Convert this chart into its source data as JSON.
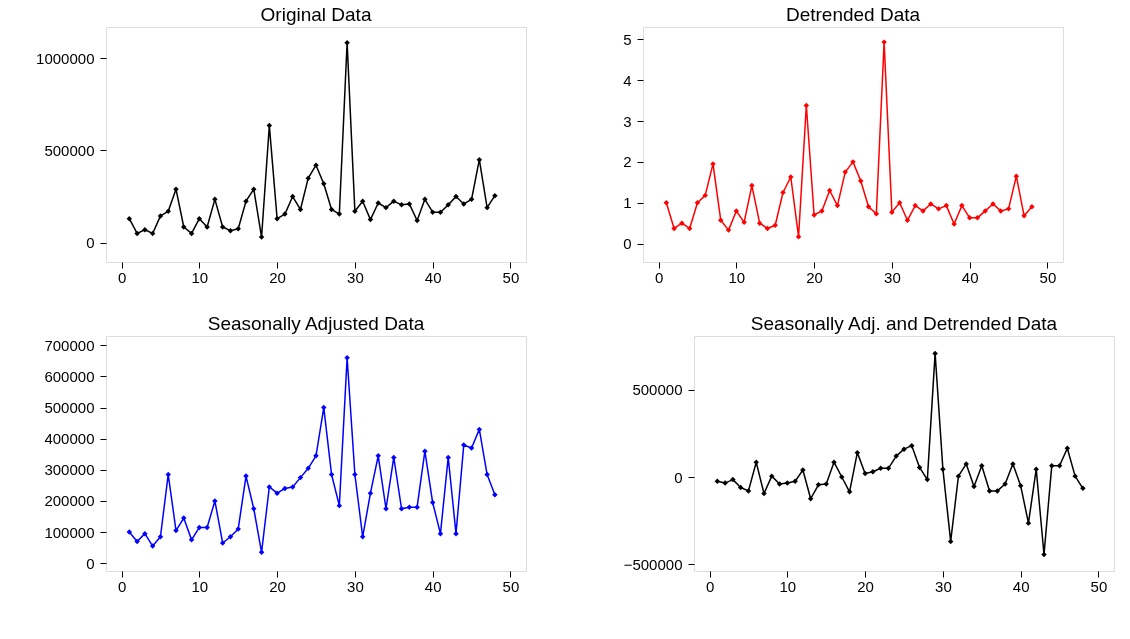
{
  "chart_data": [
    {
      "type": "line",
      "title": "Original Data",
      "marker": "diamond",
      "grid": false,
      "xlim": [
        -2,
        52
      ],
      "xticks": [
        0,
        10,
        20,
        30,
        40,
        50
      ],
      "ylim": [
        -105000,
        1170000
      ],
      "yticks": [
        0,
        500000,
        1000000
      ],
      "x": [
        1,
        2,
        3,
        4,
        5,
        6,
        7,
        8,
        9,
        10,
        11,
        12,
        13,
        14,
        15,
        16,
        17,
        18,
        19,
        20,
        21,
        22,
        23,
        24,
        25,
        26,
        27,
        28,
        29,
        30,
        31,
        32,
        33,
        34,
        35,
        36,
        37,
        38,
        39,
        40,
        41,
        42,
        43,
        44,
        45,
        46,
        47,
        48
      ],
      "series": [
        {
          "color": "#000000",
          "values": [
            130000,
            50000,
            70000,
            50000,
            145000,
            170000,
            290000,
            85000,
            50000,
            130000,
            85000,
            235000,
            85000,
            65000,
            75000,
            225000,
            290000,
            30000,
            635000,
            130000,
            155000,
            250000,
            180000,
            350000,
            420000,
            320000,
            180000,
            155000,
            1085000,
            170000,
            225000,
            125000,
            215000,
            190000,
            225000,
            205000,
            210000,
            120000,
            235000,
            165000,
            165000,
            205000,
            250000,
            210000,
            235000,
            450000,
            190000,
            255000
          ]
        }
      ]
    },
    {
      "type": "line",
      "title": "Detrended Data",
      "marker": "diamond",
      "grid": false,
      "xlim": [
        -2,
        52
      ],
      "xticks": [
        0,
        10,
        20,
        30,
        40,
        50
      ],
      "ylim": [
        -0.45,
        5.3
      ],
      "yticks": [
        0,
        1,
        2,
        3,
        4,
        5
      ],
      "x": [
        1,
        2,
        3,
        4,
        5,
        6,
        7,
        8,
        9,
        10,
        11,
        12,
        13,
        14,
        15,
        16,
        17,
        18,
        19,
        20,
        21,
        22,
        23,
        24,
        25,
        26,
        27,
        28,
        29,
        30,
        31,
        32,
        33,
        34,
        35,
        36,
        37,
        38,
        39,
        40,
        41,
        42,
        43,
        44,
        45,
        46,
        47,
        48
      ],
      "series": [
        {
          "color": "#ff0000",
          "values": [
            1.0,
            0.37,
            0.5,
            0.37,
            1.0,
            1.18,
            1.95,
            0.57,
            0.33,
            0.8,
            0.52,
            1.42,
            0.5,
            0.37,
            0.45,
            1.25,
            1.63,
            0.17,
            3.38,
            0.7,
            0.8,
            1.3,
            0.93,
            1.75,
            2.0,
            1.53,
            0.9,
            0.73,
            4.93,
            0.77,
            1.0,
            0.57,
            0.93,
            0.8,
            0.97,
            0.85,
            0.93,
            0.48,
            0.93,
            0.63,
            0.63,
            0.8,
            0.97,
            0.8,
            0.85,
            1.65,
            0.68,
            0.9
          ]
        }
      ]
    },
    {
      "type": "line",
      "title": "Seasonally Adjusted Data",
      "marker": "diamond",
      "grid": false,
      "xlim": [
        -2,
        52
      ],
      "xticks": [
        0,
        10,
        20,
        30,
        40,
        50
      ],
      "ylim": [
        -25000,
        730000
      ],
      "yticks": [
        0,
        100000,
        200000,
        300000,
        400000,
        500000,
        600000,
        700000
      ],
      "x": [
        1,
        2,
        3,
        4,
        5,
        6,
        7,
        8,
        9,
        10,
        11,
        12,
        13,
        14,
        15,
        16,
        17,
        18,
        19,
        20,
        21,
        22,
        23,
        24,
        25,
        26,
        27,
        28,
        29,
        30,
        31,
        32,
        33,
        34,
        35,
        36,
        37,
        38,
        39,
        40,
        41,
        42,
        43,
        44,
        45,
        46,
        47,
        48
      ],
      "series": [
        {
          "color": "#0000ff",
          "values": [
            100000,
            70000,
            95000,
            55000,
            85000,
            285000,
            105000,
            145000,
            75000,
            115000,
            115000,
            200000,
            65000,
            85000,
            110000,
            280000,
            175000,
            35000,
            245000,
            225000,
            240000,
            245000,
            275000,
            305000,
            345000,
            500000,
            285000,
            185000,
            660000,
            285000,
            85000,
            225000,
            345000,
            175000,
            340000,
            175000,
            180000,
            180000,
            360000,
            195000,
            95000,
            340000,
            95000,
            380000,
            370000,
            430000,
            285000,
            220000
          ]
        }
      ]
    },
    {
      "type": "line",
      "title": "Seasonally Adj. and Detrended Data",
      "marker": "diamond",
      "grid": false,
      "xlim": [
        -2,
        52
      ],
      "xticks": [
        0,
        10,
        20,
        30,
        40,
        50
      ],
      "ylim": [
        -540000,
        810000
      ],
      "yticks": [
        -500000,
        0,
        500000
      ],
      "x": [
        1,
        2,
        3,
        4,
        5,
        6,
        7,
        8,
        9,
        10,
        11,
        12,
        13,
        14,
        15,
        16,
        17,
        18,
        19,
        20,
        21,
        22,
        23,
        24,
        25,
        26,
        27,
        28,
        29,
        30,
        31,
        32,
        33,
        34,
        35,
        36,
        37,
        38,
        39,
        40,
        41,
        42,
        43,
        44,
        45,
        46,
        47,
        48
      ],
      "series": [
        {
          "color": "#000000",
          "values": [
            -25000,
            -35000,
            -15000,
            -60000,
            -80000,
            85000,
            -95000,
            5000,
            -40000,
            -35000,
            -25000,
            40000,
            -125000,
            -45000,
            -40000,
            85000,
            0,
            -85000,
            140000,
            20000,
            30000,
            50000,
            50000,
            120000,
            160000,
            180000,
            55000,
            -15000,
            710000,
            45000,
            -370000,
            5000,
            75000,
            -55000,
            65000,
            -80000,
            -80000,
            -40000,
            75000,
            -50000,
            -265000,
            45000,
            -445000,
            65000,
            65000,
            165000,
            5000,
            -65000
          ]
        }
      ]
    }
  ]
}
